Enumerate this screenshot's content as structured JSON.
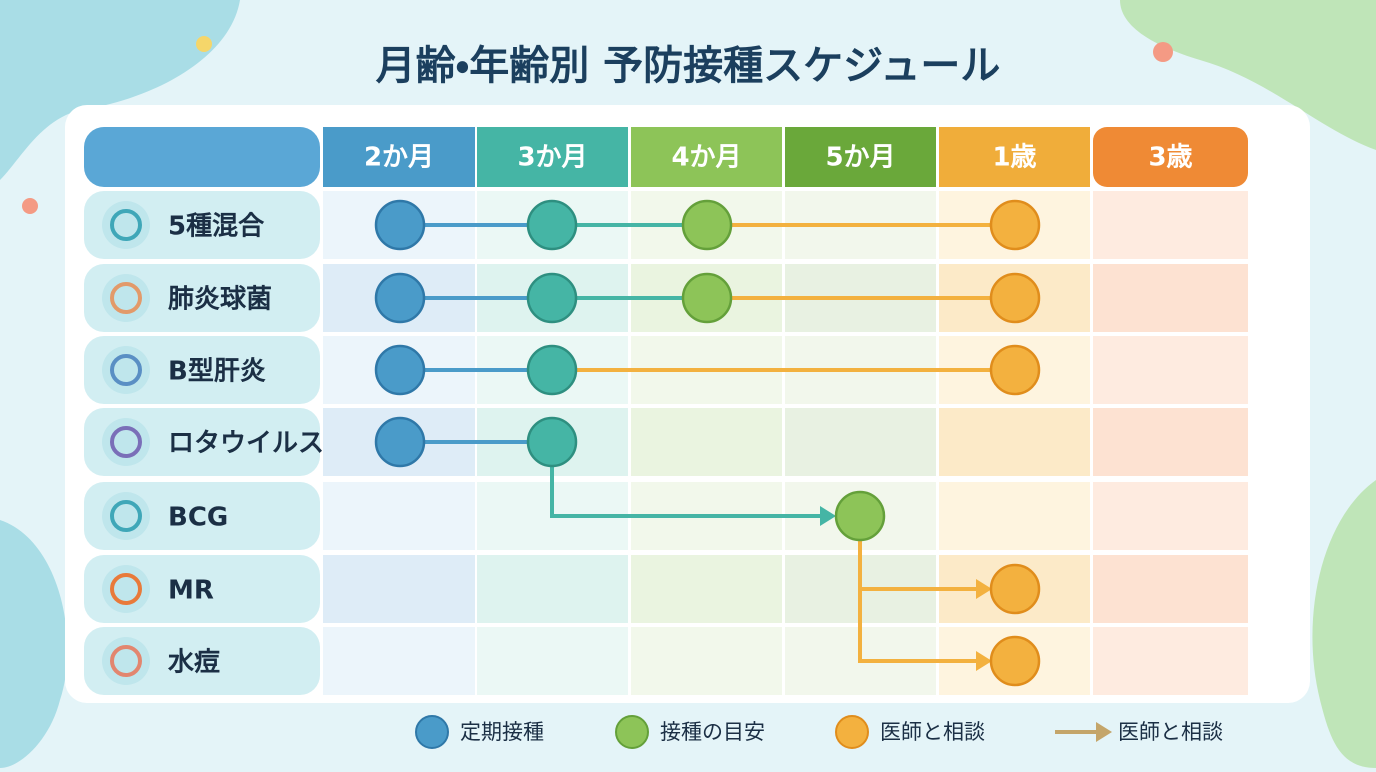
{
  "title": "月齢・年齢別 予防接種スケジュール",
  "columns": [
    {
      "label": "2か月"
    },
    {
      "label": "3か月"
    },
    {
      "label": "4か月"
    },
    {
      "label": "5か月"
    },
    {
      "label": "1歳"
    },
    {
      "label": "3歳"
    }
  ],
  "rows": [
    {
      "label": "5種混合"
    },
    {
      "label": "肺炎球菌"
    },
    {
      "label": "B型肝炎"
    },
    {
      "label": "ロタウイルス"
    },
    {
      "label": "BCG"
    },
    {
      "label": "MR"
    },
    {
      "label": "水痘"
    }
  ],
  "legend": [
    {
      "label": "定期接種"
    },
    {
      "label": "接種の目安"
    },
    {
      "label": "医師と相談"
    },
    {
      "label": "医師と相談"
    }
  ]
}
